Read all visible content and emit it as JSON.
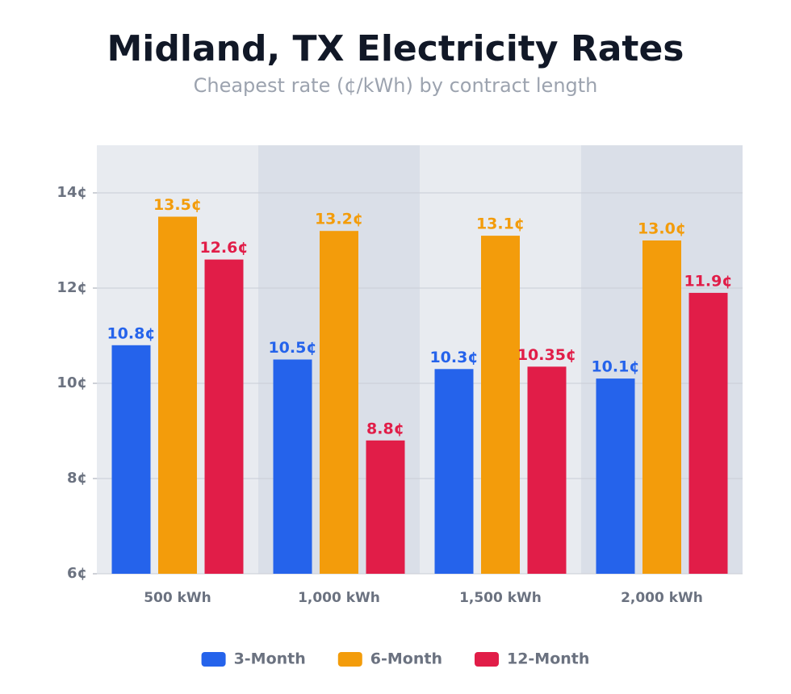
{
  "chart_data": {
    "type": "bar",
    "title": "Midland, TX Electricity Rates",
    "subtitle": "Cheapest rate (¢/kWh) by contract length",
    "categories": [
      "500 kWh",
      "1,000 kWh",
      "1,500 kWh",
      "2,000 kWh"
    ],
    "series": [
      {
        "name": "3-Month",
        "color": "#2563eb",
        "values": [
          10.8,
          10.5,
          10.3,
          10.1
        ],
        "value_labels": [
          "10.8¢",
          "10.5¢",
          "10.3¢",
          "10.1¢"
        ]
      },
      {
        "name": "6-Month",
        "color": "#f39c0b",
        "values": [
          13.5,
          13.2,
          13.1,
          13.0
        ],
        "value_labels": [
          "13.5¢",
          "13.2¢",
          "13.1¢",
          "13.0¢"
        ]
      },
      {
        "name": "12-Month",
        "color": "#e11d48",
        "values": [
          12.6,
          8.8,
          10.35,
          11.9
        ],
        "value_labels": [
          "12.6¢",
          "8.8¢",
          "10.35¢",
          "11.9¢"
        ]
      }
    ],
    "ylim": [
      6,
      15
    ],
    "yticks": [
      {
        "value": 6,
        "label": "6¢"
      },
      {
        "value": 8,
        "label": "8¢"
      },
      {
        "value": 10,
        "label": "10¢"
      },
      {
        "value": 12,
        "label": "12¢"
      },
      {
        "value": 14,
        "label": "14¢"
      }
    ],
    "grid": true,
    "legend": "bottom"
  }
}
